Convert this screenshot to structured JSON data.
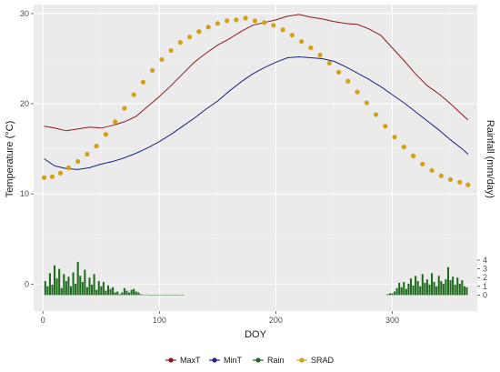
{
  "chart_data": {
    "type": "line",
    "xlabel": "DOY",
    "ylabel": "Temperature (°C)",
    "y2label": "Rainfall (mm/day)",
    "xlim": [
      -8,
      373
    ],
    "ylim": [
      -3,
      31
    ],
    "y2lim": [
      -1,
      4
    ],
    "xticks": [
      0,
      100,
      200,
      300
    ],
    "yticks": [
      0,
      10,
      20,
      30
    ],
    "y2ticks": [
      0,
      1,
      2,
      3,
      4
    ],
    "grid": true,
    "background": "#ebebeb",
    "legend_position": "bottom",
    "colors": {
      "MaxT": "#8b1a1a",
      "MinT": "#1a237e",
      "Rain": "#1e6b1e",
      "SRAD": "#d4a017"
    },
    "series": [
      {
        "name": "MaxT",
        "type": "line",
        "axis": "left",
        "x": [
          1,
          10,
          20,
          30,
          40,
          50,
          60,
          70,
          80,
          90,
          100,
          110,
          120,
          130,
          140,
          150,
          160,
          170,
          180,
          190,
          200,
          210,
          220,
          230,
          240,
          250,
          260,
          270,
          280,
          290,
          300,
          310,
          320,
          330,
          340,
          350,
          360,
          365
        ],
        "values": [
          17.5,
          17.3,
          17.0,
          17.2,
          17.4,
          17.3,
          17.6,
          18.0,
          18.6,
          19.7,
          20.8,
          22.0,
          23.3,
          24.6,
          25.6,
          26.5,
          27.2,
          28.0,
          28.7,
          29.0,
          29.3,
          29.7,
          29.9,
          29.6,
          29.4,
          29.1,
          28.9,
          28.8,
          28.3,
          27.6,
          26.2,
          24.8,
          23.3,
          22.0,
          21.1,
          20.0,
          18.8,
          18.2
        ]
      },
      {
        "name": "MinT",
        "type": "line",
        "axis": "left",
        "x": [
          1,
          10,
          20,
          30,
          40,
          50,
          60,
          70,
          80,
          90,
          100,
          110,
          120,
          130,
          140,
          150,
          160,
          170,
          180,
          190,
          200,
          210,
          220,
          230,
          240,
          250,
          260,
          270,
          280,
          290,
          300,
          310,
          320,
          330,
          340,
          350,
          360,
          365
        ],
        "values": [
          13.9,
          13.1,
          12.8,
          12.7,
          12.9,
          13.3,
          13.6,
          14.0,
          14.5,
          15.1,
          15.8,
          16.6,
          17.5,
          18.4,
          19.4,
          20.3,
          21.4,
          22.4,
          23.3,
          24.0,
          24.6,
          25.1,
          25.2,
          25.1,
          25.0,
          24.7,
          24.1,
          23.4,
          22.7,
          21.9,
          21.0,
          20.1,
          19.1,
          18.1,
          17.1,
          16.0,
          15.0,
          14.4
        ]
      },
      {
        "name": "SRAD",
        "type": "scatter",
        "axis": "left",
        "x": [
          1,
          8,
          15,
          22,
          30,
          38,
          46,
          54,
          62,
          70,
          78,
          86,
          94,
          102,
          110,
          118,
          126,
          134,
          142,
          150,
          158,
          166,
          174,
          182,
          190,
          198,
          206,
          214,
          222,
          230,
          238,
          246,
          254,
          262,
          270,
          278,
          286,
          294,
          302,
          310,
          318,
          326,
          334,
          342,
          350,
          358,
          365
        ],
        "values": [
          11.8,
          11.9,
          12.3,
          12.9,
          13.6,
          14.4,
          15.3,
          16.6,
          18.0,
          19.5,
          21.0,
          22.4,
          23.7,
          24.9,
          25.9,
          26.8,
          27.4,
          28.0,
          28.5,
          28.9,
          29.2,
          29.3,
          29.5,
          29.2,
          29.0,
          28.7,
          28.2,
          27.6,
          26.9,
          26.2,
          25.4,
          24.5,
          23.5,
          22.5,
          21.3,
          20.1,
          18.8,
          17.5,
          16.3,
          15.2,
          14.2,
          13.3,
          12.6,
          12.0,
          11.6,
          11.3,
          11.0
        ]
      },
      {
        "name": "Rain",
        "type": "bar",
        "axis": "right",
        "x": [
          2,
          4,
          6,
          8,
          10,
          12,
          14,
          16,
          18,
          20,
          22,
          24,
          26,
          28,
          30,
          32,
          34,
          36,
          38,
          40,
          42,
          44,
          46,
          48,
          50,
          52,
          54,
          56,
          58,
          60,
          62,
          64,
          66,
          68,
          70,
          72,
          74,
          76,
          78,
          80,
          82,
          84,
          86,
          88,
          90,
          92,
          94,
          96,
          98,
          100,
          102,
          104,
          106,
          108,
          110,
          112,
          114,
          116,
          118,
          120,
          296,
          298,
          300,
          302,
          304,
          306,
          308,
          310,
          312,
          314,
          316,
          318,
          320,
          322,
          324,
          326,
          328,
          330,
          332,
          334,
          336,
          338,
          340,
          342,
          344,
          346,
          348,
          350,
          352,
          354,
          356,
          358,
          360,
          362,
          364
        ],
        "values": [
          1.6,
          1.0,
          2.5,
          1.2,
          3.4,
          1.9,
          3.0,
          0.8,
          2.4,
          1.6,
          2.1,
          1.0,
          2.6,
          1.3,
          3.8,
          2.2,
          1.5,
          2.9,
          0.9,
          2.0,
          1.2,
          2.4,
          0.6,
          1.6,
          1.0,
          1.5,
          0.5,
          1.1,
          0.7,
          0.9,
          0.3,
          0.4,
          0.1,
          0.3,
          0.8,
          0.5,
          0.3,
          0.6,
          0.7,
          0.4,
          0.3,
          0.1,
          0.05,
          0.05,
          0.05,
          0.02,
          0.02,
          0.02,
          0.02,
          0.02,
          0.02,
          0.02,
          0.02,
          0.01,
          0.01,
          0.01,
          0.01,
          0.01,
          0.01,
          0.01,
          0.1,
          0.2,
          0.2,
          0.4,
          0.8,
          1.4,
          0.9,
          1.5,
          0.7,
          1.3,
          1.9,
          1.1,
          2.2,
          1.6,
          1.0,
          2.4,
          1.4,
          1.8,
          1.2,
          2.5,
          1.5,
          1.0,
          2.2,
          1.6,
          1.3,
          1.8,
          3.2,
          1.7,
          2.1,
          1.2,
          2.0,
          1.3,
          1.7,
          1.0,
          0.9
        ]
      }
    ]
  }
}
